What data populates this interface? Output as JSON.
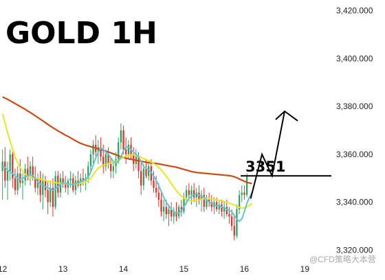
{
  "chart_data": {
    "type": "candlestick",
    "title": "GOLD 1H",
    "y_ticks": [
      3420,
      3400,
      3380,
      3360,
      3340,
      3320
    ],
    "y_tick_labels": [
      "3,420.000",
      "3,400.000",
      "3,380.000",
      "3,360.000",
      "3,340.000",
      "3,320.000"
    ],
    "ylim": [
      3315.5,
      3424.5
    ],
    "x_ticks": [
      "12",
      "13",
      "14",
      "15",
      "16",
      "19"
    ],
    "x_tick_positions": [
      0,
      24,
      48,
      72,
      96,
      120
    ],
    "xlim": [
      -1,
      130
    ],
    "candles": [
      {
        "o": 3353,
        "h": 3362,
        "l": 3341,
        "c": 3357
      },
      {
        "o": 3357,
        "h": 3363,
        "l": 3346,
        "c": 3349
      },
      {
        "o": 3349,
        "h": 3357,
        "l": 3341,
        "c": 3353
      },
      {
        "o": 3353,
        "h": 3362,
        "l": 3349,
        "c": 3360
      },
      {
        "o": 3360,
        "h": 3361,
        "l": 3346,
        "c": 3350
      },
      {
        "o": 3350,
        "h": 3354,
        "l": 3343,
        "c": 3345
      },
      {
        "o": 3345,
        "h": 3355,
        "l": 3343,
        "c": 3352
      },
      {
        "o": 3352,
        "h": 3358,
        "l": 3346,
        "c": 3348
      },
      {
        "o": 3348,
        "h": 3352,
        "l": 3341,
        "c": 3349
      },
      {
        "o": 3349,
        "h": 3356,
        "l": 3347,
        "c": 3354
      },
      {
        "o": 3354,
        "h": 3359,
        "l": 3349,
        "c": 3351
      },
      {
        "o": 3351,
        "h": 3357,
        "l": 3347,
        "c": 3355
      },
      {
        "o": 3355,
        "h": 3359,
        "l": 3349,
        "c": 3350
      },
      {
        "o": 3350,
        "h": 3355,
        "l": 3344,
        "c": 3346
      },
      {
        "o": 3346,
        "h": 3352,
        "l": 3343,
        "c": 3350
      },
      {
        "o": 3350,
        "h": 3353,
        "l": 3340,
        "c": 3343
      },
      {
        "o": 3343,
        "h": 3352,
        "l": 3337,
        "c": 3349
      },
      {
        "o": 3349,
        "h": 3351,
        "l": 3342,
        "c": 3345
      },
      {
        "o": 3345,
        "h": 3349,
        "l": 3335,
        "c": 3340
      },
      {
        "o": 3340,
        "h": 3349,
        "l": 3338,
        "c": 3346
      },
      {
        "o": 3346,
        "h": 3350,
        "l": 3334,
        "c": 3338
      },
      {
        "o": 3338,
        "h": 3353,
        "l": 3337,
        "c": 3351
      },
      {
        "o": 3351,
        "h": 3353,
        "l": 3342,
        "c": 3344
      },
      {
        "o": 3344,
        "h": 3352,
        "l": 3342,
        "c": 3350
      },
      {
        "o": 3350,
        "h": 3353,
        "l": 3346,
        "c": 3348
      },
      {
        "o": 3348,
        "h": 3351,
        "l": 3344,
        "c": 3346
      },
      {
        "o": 3346,
        "h": 3350,
        "l": 3343,
        "c": 3349
      },
      {
        "o": 3349,
        "h": 3353,
        "l": 3346,
        "c": 3350
      },
      {
        "o": 3350,
        "h": 3352,
        "l": 3344,
        "c": 3345
      },
      {
        "o": 3345,
        "h": 3351,
        "l": 3343,
        "c": 3349
      },
      {
        "o": 3349,
        "h": 3353,
        "l": 3346,
        "c": 3347
      },
      {
        "o": 3347,
        "h": 3352,
        "l": 3344,
        "c": 3350
      },
      {
        "o": 3350,
        "h": 3354,
        "l": 3347,
        "c": 3349
      },
      {
        "o": 3349,
        "h": 3352,
        "l": 3345,
        "c": 3350
      },
      {
        "o": 3350,
        "h": 3357,
        "l": 3348,
        "c": 3355
      },
      {
        "o": 3355,
        "h": 3362,
        "l": 3352,
        "c": 3360
      },
      {
        "o": 3360,
        "h": 3366,
        "l": 3355,
        "c": 3364
      },
      {
        "o": 3364,
        "h": 3368,
        "l": 3359,
        "c": 3361
      },
      {
        "o": 3361,
        "h": 3366,
        "l": 3356,
        "c": 3363
      },
      {
        "o": 3363,
        "h": 3367,
        "l": 3357,
        "c": 3359
      },
      {
        "o": 3359,
        "h": 3364,
        "l": 3352,
        "c": 3355
      },
      {
        "o": 3355,
        "h": 3362,
        "l": 3353,
        "c": 3360
      },
      {
        "o": 3360,
        "h": 3363,
        "l": 3354,
        "c": 3356
      },
      {
        "o": 3356,
        "h": 3359,
        "l": 3350,
        "c": 3353
      },
      {
        "o": 3353,
        "h": 3357,
        "l": 3350,
        "c": 3355
      },
      {
        "o": 3355,
        "h": 3361,
        "l": 3352,
        "c": 3358
      },
      {
        "o": 3358,
        "h": 3367,
        "l": 3356,
        "c": 3365
      },
      {
        "o": 3365,
        "h": 3373,
        "l": 3362,
        "c": 3370
      },
      {
        "o": 3370,
        "h": 3372,
        "l": 3360,
        "c": 3362
      },
      {
        "o": 3362,
        "h": 3367,
        "l": 3356,
        "c": 3360
      },
      {
        "o": 3360,
        "h": 3366,
        "l": 3358,
        "c": 3364
      },
      {
        "o": 3364,
        "h": 3367,
        "l": 3358,
        "c": 3360
      },
      {
        "o": 3360,
        "h": 3363,
        "l": 3353,
        "c": 3356
      },
      {
        "o": 3356,
        "h": 3362,
        "l": 3354,
        "c": 3359
      },
      {
        "o": 3359,
        "h": 3361,
        "l": 3350,
        "c": 3353
      },
      {
        "o": 3353,
        "h": 3357,
        "l": 3343,
        "c": 3347
      },
      {
        "o": 3347,
        "h": 3356,
        "l": 3345,
        "c": 3354
      },
      {
        "o": 3354,
        "h": 3358,
        "l": 3350,
        "c": 3351
      },
      {
        "o": 3351,
        "h": 3357,
        "l": 3349,
        "c": 3355
      },
      {
        "o": 3355,
        "h": 3358,
        "l": 3347,
        "c": 3349
      },
      {
        "o": 3349,
        "h": 3353,
        "l": 3344,
        "c": 3346
      },
      {
        "o": 3346,
        "h": 3351,
        "l": 3342,
        "c": 3344
      },
      {
        "o": 3344,
        "h": 3348,
        "l": 3338,
        "c": 3341
      },
      {
        "o": 3341,
        "h": 3345,
        "l": 3334,
        "c": 3336
      },
      {
        "o": 3336,
        "h": 3341,
        "l": 3332,
        "c": 3338
      },
      {
        "o": 3338,
        "h": 3341,
        "l": 3333,
        "c": 3335
      },
      {
        "o": 3335,
        "h": 3339,
        "l": 3330,
        "c": 3337
      },
      {
        "o": 3337,
        "h": 3340,
        "l": 3332,
        "c": 3334
      },
      {
        "o": 3334,
        "h": 3338,
        "l": 3331,
        "c": 3336
      },
      {
        "o": 3336,
        "h": 3340,
        "l": 3332,
        "c": 3334
      },
      {
        "o": 3334,
        "h": 3339,
        "l": 3333,
        "c": 3338
      },
      {
        "o": 3338,
        "h": 3341,
        "l": 3334,
        "c": 3336
      },
      {
        "o": 3336,
        "h": 3344,
        "l": 3335,
        "c": 3342
      },
      {
        "o": 3342,
        "h": 3347,
        "l": 3339,
        "c": 3345
      },
      {
        "o": 3345,
        "h": 3348,
        "l": 3341,
        "c": 3343
      },
      {
        "o": 3343,
        "h": 3347,
        "l": 3339,
        "c": 3345
      },
      {
        "o": 3345,
        "h": 3348,
        "l": 3340,
        "c": 3342
      },
      {
        "o": 3342,
        "h": 3346,
        "l": 3338,
        "c": 3344
      },
      {
        "o": 3344,
        "h": 3347,
        "l": 3339,
        "c": 3341
      },
      {
        "o": 3341,
        "h": 3345,
        "l": 3336,
        "c": 3343
      },
      {
        "o": 3343,
        "h": 3346,
        "l": 3336,
        "c": 3338
      },
      {
        "o": 3338,
        "h": 3343,
        "l": 3337,
        "c": 3341
      },
      {
        "o": 3341,
        "h": 3344,
        "l": 3338,
        "c": 3340
      },
      {
        "o": 3340,
        "h": 3343,
        "l": 3336,
        "c": 3338
      },
      {
        "o": 3338,
        "h": 3342,
        "l": 3335,
        "c": 3340
      },
      {
        "o": 3340,
        "h": 3342,
        "l": 3336,
        "c": 3337
      },
      {
        "o": 3337,
        "h": 3341,
        "l": 3335,
        "c": 3339
      },
      {
        "o": 3339,
        "h": 3341,
        "l": 3334,
        "c": 3336
      },
      {
        "o": 3336,
        "h": 3340,
        "l": 3333,
        "c": 3338
      },
      {
        "o": 3338,
        "h": 3341,
        "l": 3334,
        "c": 3335
      },
      {
        "o": 3335,
        "h": 3338,
        "l": 3331,
        "c": 3334
      },
      {
        "o": 3334,
        "h": 3337,
        "l": 3328,
        "c": 3330
      },
      {
        "o": 3330,
        "h": 3335,
        "l": 3324,
        "c": 3326
      },
      {
        "o": 3326,
        "h": 3339,
        "l": 3325,
        "c": 3337
      },
      {
        "o": 3337,
        "h": 3345,
        "l": 3335,
        "c": 3343
      },
      {
        "o": 3343,
        "h": 3347,
        "l": 3340,
        "c": 3344
      },
      {
        "o": 3344,
        "h": 3347,
        "l": 3341,
        "c": 3343
      },
      {
        "o": 3343,
        "h": 3352,
        "l": 3342,
        "c": 3351
      }
    ],
    "series": [
      {
        "color": "#cc4a12",
        "values": [
          3384.0,
          3383.5,
          3383.0,
          3382.4,
          3381.8,
          3381.2,
          3380.6,
          3380.0,
          3379.4,
          3378.8,
          3378.1,
          3377.5,
          3376.8,
          3376.1,
          3375.4,
          3374.7,
          3374.0,
          3373.2,
          3372.5,
          3371.8,
          3371.1,
          3370.5,
          3369.8,
          3369.2,
          3368.6,
          3368.0,
          3367.5,
          3366.9,
          3366.3,
          3365.7,
          3365.1,
          3364.6,
          3364.2,
          3363.8,
          3363.5,
          3363.2,
          3362.9,
          3362.6,
          3362.3,
          3362.0,
          3361.7,
          3361.3,
          3361.0,
          3360.6,
          3360.2,
          3359.8,
          3359.4,
          3359.0,
          3358.7,
          3358.4,
          3358.1,
          3357.9,
          3357.7,
          3357.5,
          3357.3,
          3357.1,
          3356.9,
          3356.7,
          3356.5,
          3356.4,
          3356.3,
          3356.2,
          3356.0,
          3355.8,
          3355.6,
          3355.4,
          3355.2,
          3355.0,
          3354.8,
          3354.6,
          3354.3,
          3354.0,
          3353.7,
          3353.4,
          3353.1,
          3352.8,
          3352.6,
          3352.4,
          3352.3,
          3352.2,
          3352.1,
          3352.0,
          3351.9,
          3351.8,
          3351.7,
          3351.6,
          3351.5,
          3351.4,
          3351.3,
          3351.2,
          3351.1,
          3350.9,
          3350.6,
          3350.2,
          3349.7,
          3349.2,
          3348.7,
          3348.3,
          3348.0,
          3347.8
        ]
      },
      {
        "color": "#f2e21a",
        "values": [
          3377.0,
          3373.0,
          3369.0,
          3365.5,
          3362.0,
          3359.0,
          3356.5,
          3354.5,
          3353.0,
          3351.5,
          3350.8,
          3350.3,
          3350.1,
          3350.0,
          3349.9,
          3349.6,
          3349.3,
          3349.0,
          3348.7,
          3348.5,
          3348.3,
          3348.2,
          3348.0,
          3347.9,
          3347.8,
          3347.7,
          3347.6,
          3347.5,
          3347.5,
          3347.6,
          3347.7,
          3347.9,
          3348.1,
          3348.4,
          3349.0,
          3350.0,
          3351.5,
          3353.0,
          3354.2,
          3355.0,
          3355.5,
          3355.8,
          3356.1,
          3356.3,
          3356.6,
          3357.0,
          3357.5,
          3358.2,
          3358.8,
          3359.2,
          3359.5,
          3359.7,
          3359.8,
          3359.6,
          3359.2,
          3358.7,
          3358.2,
          3357.8,
          3357.3,
          3356.8,
          3356.2,
          3355.4,
          3354.5,
          3353.4,
          3352.2,
          3350.8,
          3349.3,
          3347.7,
          3346.2,
          3344.8,
          3343.6,
          3342.5,
          3341.7,
          3341.0,
          3340.6,
          3340.5,
          3340.6,
          3340.8,
          3341.0,
          3341.2,
          3341.4,
          3341.5,
          3341.5,
          3341.4,
          3341.2,
          3341.0,
          3340.8,
          3340.5,
          3340.2,
          3339.9,
          3339.6,
          3339.2,
          3338.8,
          3338.3,
          3337.8,
          3337.5,
          3337.6,
          3338.0,
          3338.6,
          3339.4
        ]
      },
      {
        "color": "#5fc4d8",
        "values": [
          3355.0,
          3354.5,
          3353.5,
          3352.5,
          3352.0,
          3351.0,
          3350.0,
          3349.5,
          3350.0,
          3350.5,
          3351.0,
          3351.5,
          3351.0,
          3350.0,
          3348.5,
          3347.5,
          3347.0,
          3346.5,
          3346.0,
          3345.5,
          3345.0,
          3345.5,
          3346.5,
          3347.5,
          3348.0,
          3348.0,
          3347.5,
          3347.5,
          3347.5,
          3347.8,
          3348.0,
          3348.5,
          3349.0,
          3349.5,
          3350.5,
          3352.5,
          3355.5,
          3358.5,
          3361.0,
          3362.5,
          3362.0,
          3361.0,
          3360.0,
          3358.5,
          3357.0,
          3356.5,
          3357.0,
          3359.0,
          3361.5,
          3363.0,
          3363.0,
          3362.0,
          3361.0,
          3360.0,
          3359.0,
          3357.0,
          3355.0,
          3354.0,
          3353.5,
          3352.5,
          3351.0,
          3349.0,
          3347.0,
          3344.5,
          3342.0,
          3340.0,
          3338.5,
          3337.0,
          3336.0,
          3335.5,
          3335.5,
          3336.5,
          3338.0,
          3340.0,
          3341.5,
          3342.5,
          3343.0,
          3343.5,
          3343.0,
          3342.5,
          3342.0,
          3341.0,
          3340.0,
          3339.5,
          3339.0,
          3338.5,
          3338.5,
          3338.0,
          3337.5,
          3337.0,
          3336.5,
          3336.0,
          3334.5,
          3333.0,
          3332.0,
          3333.0,
          3336.0,
          3339.5,
          3342.0,
          3344.0
        ]
      }
    ],
    "annotation": {
      "label": "3351",
      "level": 3351
    },
    "projection": [
      {
        "x": 98.5,
        "y": 3341.5
      },
      {
        "x": 103,
        "y": 3360
      },
      {
        "x": 107,
        "y": 3351
      },
      {
        "x": 112,
        "y": 3378
      }
    ]
  },
  "watermark": "@CFD策略大本营"
}
